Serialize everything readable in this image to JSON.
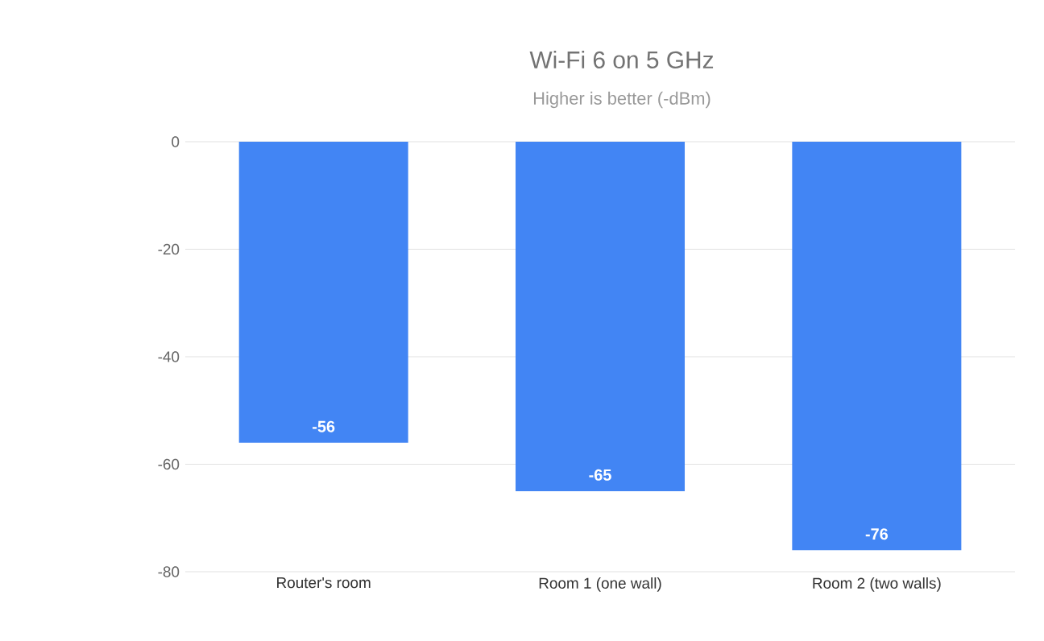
{
  "chart_data": {
    "type": "bar",
    "title": "Wi-Fi 6 on 5 GHz",
    "subtitle": "Higher is better (-dBm)",
    "categories": [
      "Router's room",
      "Room 1 (one wall)",
      "Room 2 (two walls)"
    ],
    "values": [
      -56,
      -65,
      -76
    ],
    "color": "#4285f4",
    "data_labels": true,
    "ylim": [
      -80,
      0
    ],
    "yticks": [
      -80,
      -60,
      -40,
      -20,
      0
    ],
    "grid": "y"
  }
}
